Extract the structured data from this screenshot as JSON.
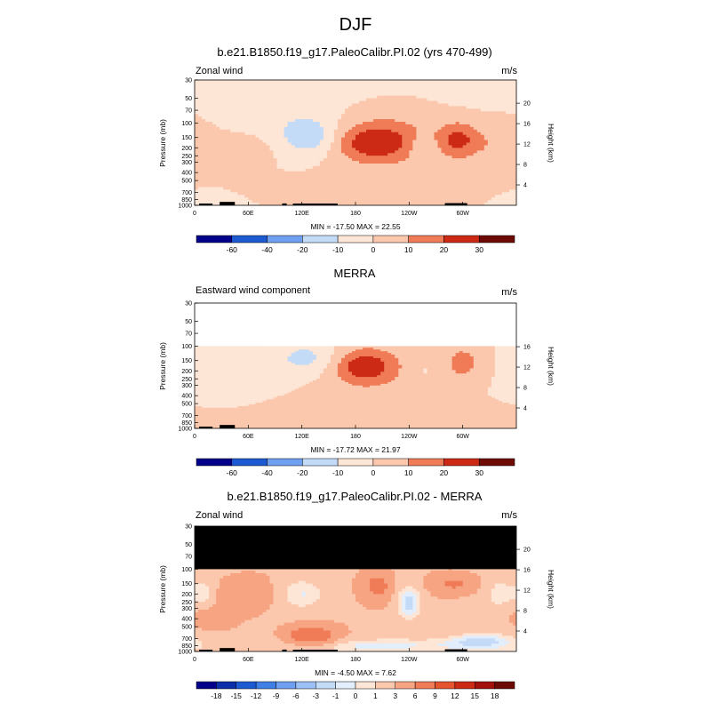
{
  "page": {
    "title": "DJF"
  },
  "colors": {
    "palette": [
      "#00008b",
      "#0b2fa8",
      "#1d5ad2",
      "#3f7fe6",
      "#6e9ff0",
      "#9cbff5",
      "#c4dbf8",
      "#e2eefc",
      "#fde6d6",
      "#fbc8ae",
      "#f7a482",
      "#f07b57",
      "#e5532f",
      "#cc2a14",
      "#a3110a",
      "#6e0a06"
    ],
    "land": "#000000",
    "missing": "#ffffff",
    "masked": "#000000"
  },
  "chart_data": [
    {
      "type": "heatmap",
      "title": "b.e21.B1850.f19_g17.PaleoCalibr.PI.02 (yrs 470-499)",
      "left_label": "Zonal wind",
      "units": "m/s",
      "ylabel": "Pressure (mb)",
      "ylabel_right": "Height (km)",
      "x_ticks": [
        "0",
        "60E",
        "120E",
        "180",
        "120W",
        "60W"
      ],
      "y_ticks": [
        "30",
        "50",
        "70",
        "100",
        "150",
        "200",
        "250",
        "300",
        "400",
        "500",
        "700",
        "850",
        "1000"
      ],
      "height_ticks": [
        "20",
        "16",
        "12",
        "8",
        "4"
      ],
      "stats": "MIN = -17.50   MAX =  22.55",
      "min": -17.5,
      "max": 22.55,
      "colorbar_labels": [
        "-60",
        "-40",
        "-20",
        "-10",
        "0",
        "10",
        "20",
        "30"
      ],
      "levels": [
        -60,
        -40,
        -20,
        -10,
        0,
        10,
        20,
        30
      ],
      "features": [
        {
          "lon": 55,
          "p": 200,
          "amp": 6,
          "sx": 25,
          "sy": 0.3
        },
        {
          "lon": 130,
          "p": 150,
          "amp": -16,
          "sx": 22,
          "sy": 0.35
        },
        {
          "lon": 105,
          "p": 100,
          "amp": -5,
          "sx": 40,
          "sy": 0.5
        },
        {
          "lon": 200,
          "p": 175,
          "amp": 22,
          "sx": 30,
          "sy": 0.35
        },
        {
          "lon": 220,
          "p": 140,
          "amp": 10,
          "sx": 45,
          "sy": 0.7
        },
        {
          "lon": 295,
          "p": 160,
          "amp": 20,
          "sx": 16,
          "sy": 0.35
        },
        {
          "lon": 255,
          "p": 200,
          "amp": -10,
          "sx": 10,
          "sy": 0.25
        },
        {
          "lon": 340,
          "p": 180,
          "amp": 8,
          "sx": 25,
          "sy": 0.45
        },
        {
          "lon": 130,
          "p": 750,
          "amp": 6,
          "sx": 60,
          "sy": 0.25
        },
        {
          "lon": 30,
          "p": 900,
          "amp": -4,
          "sx": 40,
          "sy": 0.25
        },
        {
          "lon": 240,
          "p": 700,
          "amp": 4,
          "sx": 60,
          "sy": 0.3
        },
        {
          "lon": 180,
          "p": 40,
          "amp": -3,
          "sx": 160,
          "sy": 0.7
        }
      ],
      "land": [
        {
          "lon0": 5,
          "lon1": 20,
          "h": 0.18
        },
        {
          "lon0": 28,
          "lon1": 45,
          "h": 0.55
        },
        {
          "lon0": 98,
          "lon1": 103,
          "h": 0.3
        },
        {
          "lon0": 110,
          "lon1": 160,
          "h": 0.2
        },
        {
          "lon0": 280,
          "lon1": 305,
          "h": 0.35
        }
      ]
    },
    {
      "type": "heatmap",
      "title": "MERRA",
      "left_label": "Eastward wind component",
      "units": "m/s",
      "ylabel": "Pressure (mb)",
      "ylabel_right": "Height (km)",
      "x_ticks": [
        "0",
        "60E",
        "120E",
        "180",
        "120W",
        "60W"
      ],
      "y_ticks": [
        "30",
        "50",
        "70",
        "100",
        "150",
        "200",
        "250",
        "300",
        "400",
        "500",
        "700",
        "850",
        "1000"
      ],
      "height_ticks": [
        "16",
        "12",
        "8",
        "4"
      ],
      "stats": "MIN = -17.72   MAX =  21.97",
      "min": -17.72,
      "max": 21.97,
      "colorbar_labels": [
        "-60",
        "-40",
        "-20",
        "-10",
        "0",
        "10",
        "20",
        "30"
      ],
      "levels": [
        -60,
        -40,
        -20,
        -10,
        0,
        10,
        20,
        30
      ],
      "ptop": 100,
      "features": [
        {
          "lon": 125,
          "p": 140,
          "amp": -14,
          "sx": 25,
          "sy": 0.35
        },
        {
          "lon": 190,
          "p": 175,
          "amp": 22,
          "sx": 22,
          "sy": 0.3
        },
        {
          "lon": 200,
          "p": 200,
          "amp": 8,
          "sx": 45,
          "sy": 0.6
        },
        {
          "lon": 300,
          "p": 160,
          "amp": 14,
          "sx": 14,
          "sy": 0.35
        },
        {
          "lon": 255,
          "p": 200,
          "amp": -4,
          "sx": 12,
          "sy": 0.3
        },
        {
          "lon": 40,
          "p": 170,
          "amp": -5,
          "sx": 30,
          "sy": 0.4
        },
        {
          "lon": 60,
          "p": 350,
          "amp": -3,
          "sx": 40,
          "sy": 0.4
        },
        {
          "lon": 130,
          "p": 600,
          "amp": 4,
          "sx": 60,
          "sy": 0.35
        },
        {
          "lon": 240,
          "p": 800,
          "amp": 3,
          "sx": 70,
          "sy": 0.3
        }
      ],
      "land": [
        {
          "lon0": 5,
          "lon1": 20,
          "h": 0.18
        },
        {
          "lon0": 28,
          "lon1": 45,
          "h": 0.55
        }
      ]
    },
    {
      "type": "heatmap",
      "title": "b.e21.B1850.f19_g17.PaleoCalibr.PI.02 - MERRA",
      "left_label": "Zonal wind",
      "units": "m/s",
      "ylabel": "Pressure (mb)",
      "ylabel_right": "Height (km)",
      "x_ticks": [
        "0",
        "60E",
        "120E",
        "180",
        "120W",
        "60W"
      ],
      "y_ticks": [
        "30",
        "50",
        "70",
        "100",
        "150",
        "200",
        "250",
        "300",
        "400",
        "500",
        "700",
        "850",
        "1000"
      ],
      "height_ticks": [
        "20",
        "16",
        "12",
        "8",
        "4"
      ],
      "stats": "MIN = -4.50   MAX =  7.62",
      "min": -4.5,
      "max": 7.62,
      "colorbar_labels": [
        "-18",
        "-15",
        "-12",
        "-9",
        "-6",
        "-3",
        "-1",
        "0",
        "1",
        "3",
        "6",
        "9",
        "12",
        "15",
        "18"
      ],
      "levels": [
        -18,
        -15,
        -12,
        -9,
        -6,
        -3,
        -1,
        0,
        1,
        3,
        6,
        9,
        12,
        15,
        18
      ],
      "masked_above": 100,
      "features": [
        {
          "lon": 180,
          "p": 180,
          "amp": 3,
          "sx": 200,
          "sy": 2
        },
        {
          "lon": 55,
          "p": 200,
          "amp": 3,
          "sx": 25,
          "sy": 0.35
        },
        {
          "lon": 10,
          "p": 200,
          "amp": -2.5,
          "sx": 10,
          "sy": 0.3
        },
        {
          "lon": 120,
          "p": 200,
          "amp": -3,
          "sx": 22,
          "sy": 0.35
        },
        {
          "lon": 205,
          "p": 160,
          "amp": 5,
          "sx": 10,
          "sy": 0.25
        },
        {
          "lon": 240,
          "p": 250,
          "amp": -4.5,
          "sx": 10,
          "sy": 0.35
        },
        {
          "lon": 290,
          "p": 150,
          "amp": 4,
          "sx": 18,
          "sy": 0.2
        },
        {
          "lon": 340,
          "p": 200,
          "amp": -2,
          "sx": 10,
          "sy": 0.3
        },
        {
          "lon": 130,
          "p": 650,
          "amp": 7.5,
          "sx": 20,
          "sy": 0.2
        },
        {
          "lon": 200,
          "p": 850,
          "amp": -2.5,
          "sx": 80,
          "sy": 0.15
        },
        {
          "lon": 20,
          "p": 400,
          "amp": 3,
          "sx": 20,
          "sy": 0.25
        },
        {
          "lon": 320,
          "p": 750,
          "amp": -3,
          "sx": 25,
          "sy": 0.15
        }
      ],
      "land": [
        {
          "lon0": 5,
          "lon1": 20,
          "h": 0.18
        },
        {
          "lon0": 28,
          "lon1": 45,
          "h": 0.55
        },
        {
          "lon0": 98,
          "lon1": 103,
          "h": 0.3
        },
        {
          "lon0": 110,
          "lon1": 160,
          "h": 0.2
        },
        {
          "lon0": 280,
          "lon1": 305,
          "h": 0.35
        }
      ]
    }
  ]
}
